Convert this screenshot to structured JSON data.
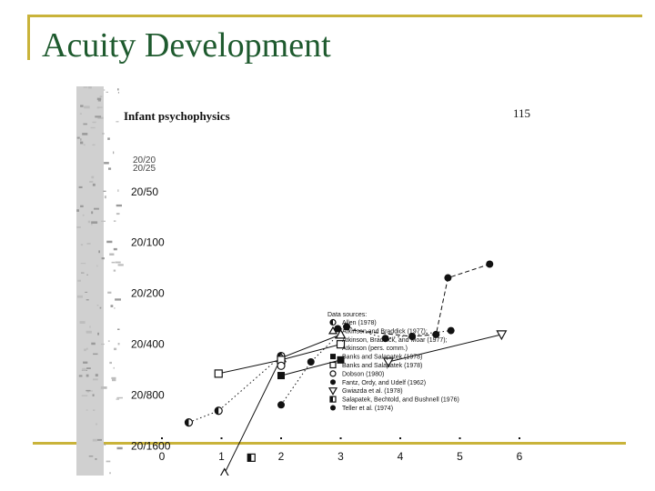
{
  "slide": {
    "title": "Acuity Development"
  },
  "page_header": {
    "heading": "Infant psychophysics",
    "page_number": "115"
  },
  "colors": {
    "title_green": "#1e5a2e",
    "frame_gold": "#c9b33a",
    "ink": "#111111"
  },
  "chart_data": {
    "type": "scatter",
    "x_ticks": [
      "0",
      "1",
      "2",
      "3",
      "4",
      "5",
      "6"
    ],
    "xlim": [
      0,
      6
    ],
    "y_ticks": [
      "20/50",
      "20/100",
      "20/200",
      "20/400",
      "20/800",
      "20/1600"
    ],
    "y_ticks_faint": [
      "20/20",
      "20/25"
    ],
    "ylim": [
      1,
      9.5
    ],
    "legend_title": "Data sources:",
    "series": [
      {
        "name": "Allen (1978)",
        "marker": "half-circle",
        "line": "dotted",
        "points": [
          [
            0.45,
            7.55
          ],
          [
            0.95,
            7.25
          ],
          [
            2.0,
            5.85
          ]
        ]
      },
      {
        "name": "Atkinson and Braddick (1977);",
        "marker": "open-triangle",
        "line": "solid",
        "points": [
          [
            1.05,
            8.85
          ],
          [
            2.0,
            5.9
          ],
          [
            3.0,
            5.3
          ]
        ]
      },
      {
        "name": "Atkinson, Braddick, and Moar (1977);",
        "marker": "none",
        "line": "none",
        "points": []
      },
      {
        "name": "Atkinson (pers. comm.)",
        "marker": "none",
        "line": "none",
        "points": []
      },
      {
        "name": "Banks and Salapatek (1978)",
        "marker": "filled-square",
        "line": "solid",
        "points": [
          [
            2.0,
            6.35
          ],
          [
            3.0,
            5.95
          ]
        ]
      },
      {
        "name": "Banks and Salapatek (1978)",
        "marker": "open-square",
        "line": "solid",
        "points": [
          [
            0.95,
            6.3
          ],
          [
            2.0,
            5.95
          ],
          [
            3.0,
            5.55
          ]
        ]
      },
      {
        "name": "Dobson (1980)",
        "marker": "open-circle",
        "line": "none",
        "points": [
          [
            2.0,
            6.1
          ]
        ]
      },
      {
        "name": "Fantz, Ordy, and Udelf (1962)",
        "marker": "filled-circle",
        "line": "dotted",
        "points": [
          [
            2.0,
            7.1
          ],
          [
            2.5,
            6.0
          ],
          [
            3.1,
            5.1
          ],
          [
            3.75,
            5.4
          ],
          [
            4.85,
            5.2
          ]
        ]
      },
      {
        "name": "Gwiazda et al. (1978)",
        "marker": "open-triangle-down",
        "line": "solid",
        "points": [
          [
            3.8,
            6.0
          ],
          [
            5.7,
            5.3
          ]
        ]
      },
      {
        "name": "Salapatek, Bechtold, and Bushnell (1976)",
        "marker": "half-square",
        "line": "none",
        "points": [
          [
            1.5,
            8.45
          ]
        ]
      },
      {
        "name": "Teller et al. (1974)",
        "marker": "filled-circle",
        "line": "dashed",
        "points": [
          [
            2.95,
            5.15
          ],
          [
            4.8,
            3.85
          ],
          [
            5.5,
            3.5
          ],
          [
            4.2,
            5.35
          ],
          [
            4.6,
            5.3
          ]
        ]
      }
    ]
  }
}
